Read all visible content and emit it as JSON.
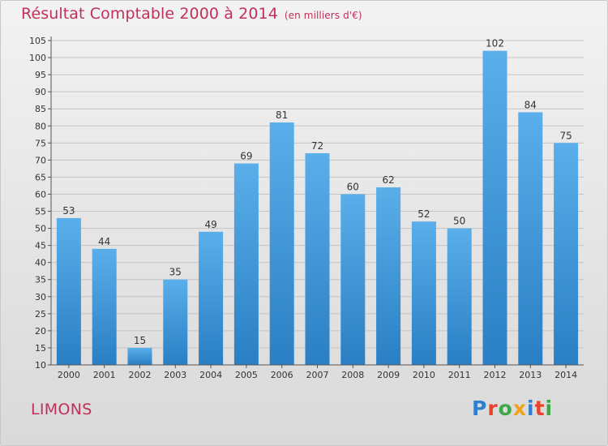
{
  "title": "Résultat Comptable 2000 à 2014",
  "unit_note": "(en milliers d'€)",
  "commune": "LIMONS",
  "logo": {
    "letters": [
      "P",
      "r",
      "o",
      "x",
      "i",
      "t",
      "i"
    ]
  },
  "colors": {
    "bar_top": "#5aaeea",
    "bar_bottom": "#2a7fc4",
    "title": "#c0305a",
    "axis": "#555555"
  },
  "chart_data": {
    "type": "bar",
    "categories": [
      "2000",
      "2001",
      "2002",
      "2003",
      "2004",
      "2005",
      "2006",
      "2007",
      "2008",
      "2009",
      "2010",
      "2011",
      "2012",
      "2013",
      "2014"
    ],
    "values": [
      53,
      44,
      15,
      35,
      49,
      69,
      81,
      72,
      60,
      62,
      52,
      50,
      102,
      84,
      75
    ],
    "ylim": [
      10,
      105
    ],
    "yticks": [
      10,
      15,
      20,
      25,
      30,
      35,
      40,
      45,
      50,
      55,
      60,
      65,
      70,
      75,
      80,
      85,
      90,
      95,
      100,
      105
    ],
    "grid": true,
    "legend": "none"
  }
}
